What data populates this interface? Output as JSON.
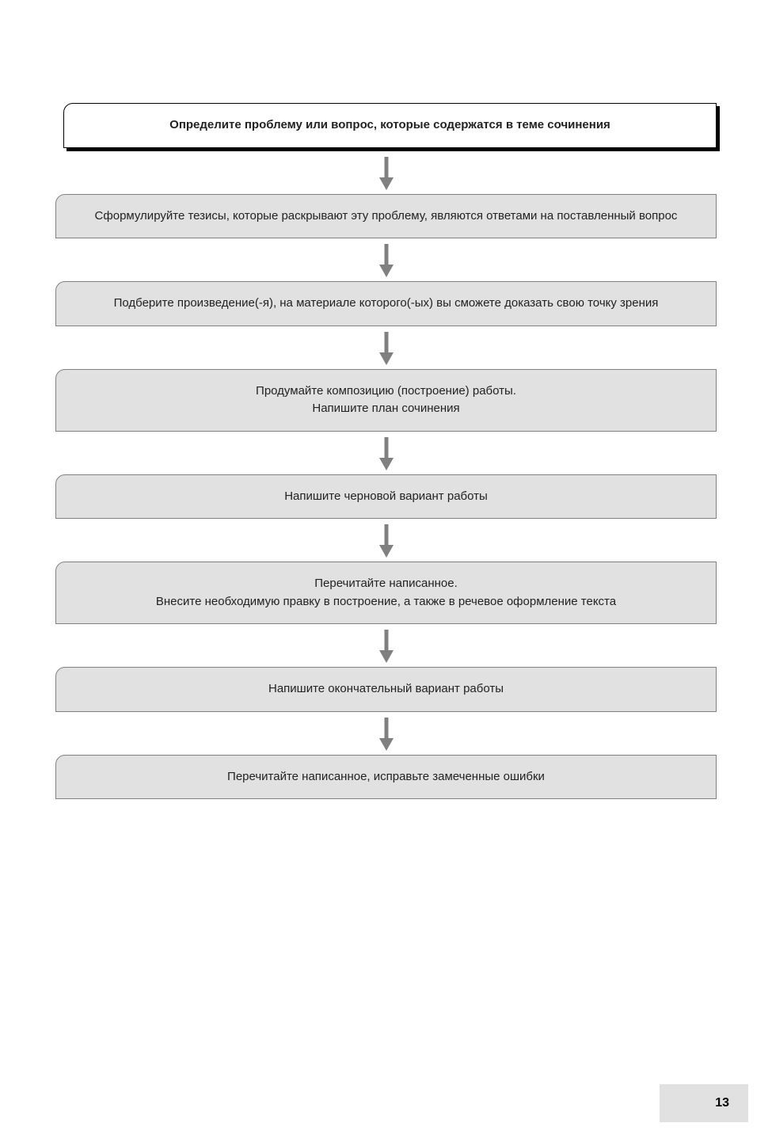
{
  "flowchart": {
    "type": "flowchart",
    "arrow_color": "#808080",
    "box_border_color": "#808080",
    "header_box_border_color": "#000000",
    "header_box_shadow_color": "#000000",
    "box_corner_radius_tl": 12,
    "box_fill_gray": "#e1e1e1",
    "box_fill_white": "#ffffff",
    "text_color": "#222222",
    "font_size": 15,
    "header_font_weight": "bold",
    "line_height": 1.5,
    "steps": [
      {
        "lines": [
          "Определите проблему или вопрос, которые содержатся в теме сочинения"
        ],
        "is_header": true
      },
      {
        "lines": [
          "Сформулируйте тезисы, которые  раскрывают эту проблему, являются ответами на поставленный вопрос"
        ],
        "is_header": false
      },
      {
        "lines": [
          "Подберите   произведение(-я),  на материале которого(-ых) вы сможете доказать свою точку зрения"
        ],
        "is_header": false
      },
      {
        "lines": [
          "Продумайте композицию (построение) работы.",
          "Напишите план сочинения"
        ],
        "is_header": false
      },
      {
        "lines": [
          "Напишите черновой вариант работы"
        ],
        "is_header": false
      },
      {
        "lines": [
          "Перечитайте написанное.",
          "Внесите необходимую правку в построение, а также в речевое оформление текста"
        ],
        "is_header": false
      },
      {
        "lines": [
          "Напишите окончательный вариант работы"
        ],
        "is_header": false
      },
      {
        "lines": [
          "Перечитайте написанное, исправьте замеченные ошибки"
        ],
        "is_header": false
      }
    ]
  },
  "footer": {
    "page_number": "13",
    "background_color": "#e1e1e1"
  }
}
